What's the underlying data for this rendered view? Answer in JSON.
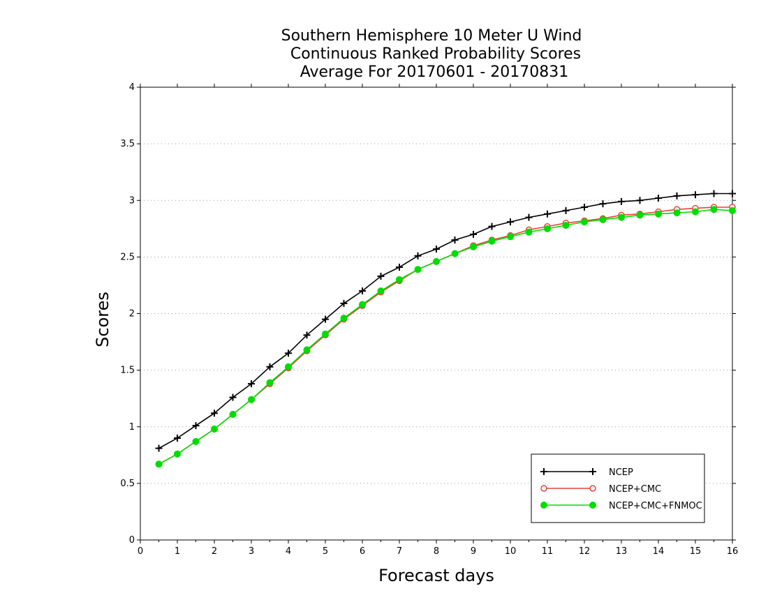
{
  "chart_data": {
    "type": "line",
    "title": [
      "Southern Hemisphere 10 Meter U Wind",
      "Continuous Ranked Probability Scores",
      "Average For 20170601 - 20170831"
    ],
    "xlabel": "Forecast days",
    "ylabel": "Scores",
    "xlim": [
      0,
      16
    ],
    "ylim": [
      0,
      4
    ],
    "xticks": [
      "0",
      "1",
      "2",
      "3",
      "4",
      "5",
      "6",
      "7",
      "8",
      "9",
      "10",
      "11",
      "12",
      "13",
      "14",
      "15",
      "16"
    ],
    "yticks": [
      "0",
      "0.5",
      "1",
      "1.5",
      "2",
      "2.5",
      "3",
      "3.5",
      "4"
    ],
    "grid": "horizontal dotted",
    "legend_position": "bottom-right",
    "x": [
      0.5,
      1,
      1.5,
      2,
      2.5,
      3,
      3.5,
      4,
      4.5,
      5,
      5.5,
      6,
      6.5,
      7,
      7.5,
      8,
      8.5,
      9,
      9.5,
      10,
      10.5,
      11,
      11.5,
      12,
      12.5,
      13,
      13.5,
      14,
      14.5,
      15,
      15.5,
      16
    ],
    "series": [
      {
        "name": "NCEP",
        "color": "#000000",
        "marker": "plus",
        "values": [
          0.81,
          0.9,
          1.01,
          1.12,
          1.26,
          1.38,
          1.53,
          1.65,
          1.81,
          1.95,
          2.09,
          2.2,
          2.33,
          2.41,
          2.51,
          2.57,
          2.65,
          2.7,
          2.77,
          2.81,
          2.85,
          2.88,
          2.91,
          2.94,
          2.97,
          2.99,
          3.0,
          3.02,
          3.04,
          3.05,
          3.06,
          3.06
        ]
      },
      {
        "name": "NCEP+CMC",
        "color": "#e8413a",
        "marker": "open-circle",
        "values": [
          0.67,
          0.76,
          0.87,
          0.98,
          1.11,
          1.24,
          1.38,
          1.52,
          1.67,
          1.81,
          1.95,
          2.07,
          2.19,
          2.29,
          2.39,
          2.46,
          2.53,
          2.6,
          2.65,
          2.69,
          2.74,
          2.77,
          2.8,
          2.82,
          2.84,
          2.87,
          2.88,
          2.9,
          2.92,
          2.93,
          2.94,
          2.94
        ]
      },
      {
        "name": "NCEP+CMC+FNMOC",
        "color": "#00dd00",
        "marker": "filled-circle",
        "values": [
          0.67,
          0.76,
          0.87,
          0.98,
          1.11,
          1.24,
          1.39,
          1.53,
          1.68,
          1.82,
          1.96,
          2.08,
          2.2,
          2.3,
          2.39,
          2.46,
          2.53,
          2.59,
          2.64,
          2.68,
          2.72,
          2.75,
          2.78,
          2.81,
          2.83,
          2.85,
          2.87,
          2.88,
          2.89,
          2.9,
          2.92,
          2.91
        ]
      }
    ]
  }
}
